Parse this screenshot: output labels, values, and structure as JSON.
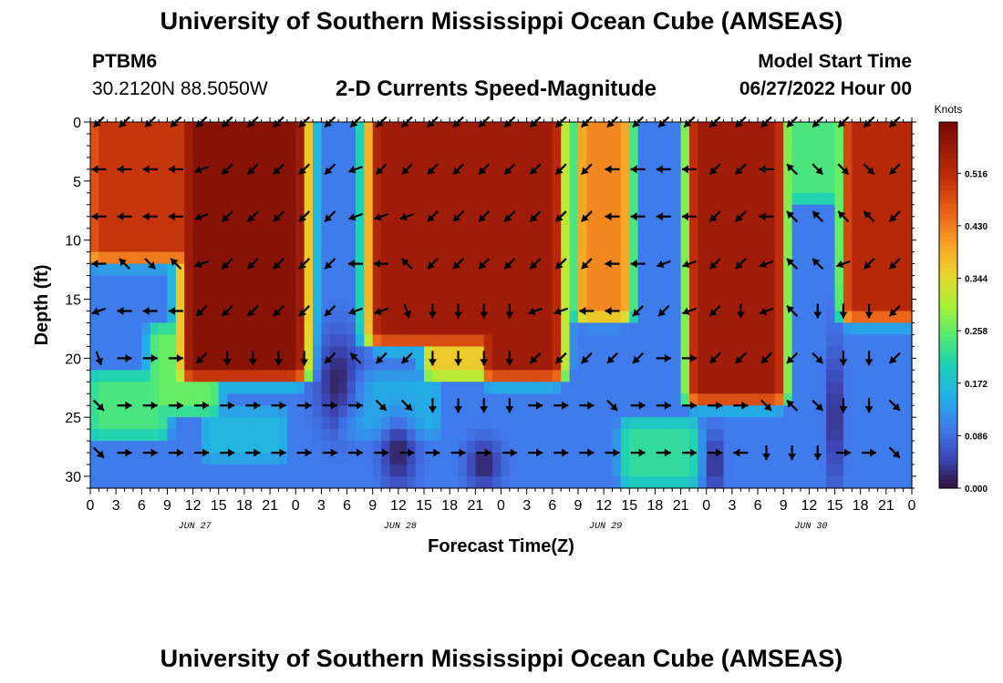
{
  "header": {
    "title": "University of Southern Mississippi Ocean Cube (AMSEAS)",
    "station_id": "PTBM6",
    "station_coords": "30.2120N  88.5050W",
    "subtitle": "2-D Currents Speed-Magnitude",
    "model_start_label": "Model Start Time",
    "model_start_value": "06/27/2022 Hour 00"
  },
  "footer": {
    "title": "University of Southern Mississippi Ocean Cube (AMSEAS)"
  },
  "chart_data": {
    "type": "heatmap",
    "title": "2-D Currents Speed-Magnitude",
    "xlabel": "Forecast Time(Z)",
    "ylabel": "Depth (ft)",
    "xlim": [
      0,
      96
    ],
    "ylim": [
      31,
      0
    ],
    "x_ticks": [
      0,
      3,
      6,
      9,
      12,
      15,
      18,
      21,
      24,
      27,
      30,
      33,
      36,
      39,
      42,
      45,
      48,
      51,
      54,
      57,
      60,
      63,
      66,
      69,
      72,
      75,
      78,
      81,
      84,
      87,
      90,
      93,
      96
    ],
    "x_tick_labels": [
      "0",
      "3",
      "6",
      "9",
      "12",
      "15",
      "18",
      "21",
      "0",
      "3",
      "6",
      "9",
      "12",
      "15",
      "18",
      "21",
      "0",
      "3",
      "6",
      "9",
      "12",
      "15",
      "18",
      "21",
      "0",
      "3",
      "6",
      "9",
      "12",
      "15",
      "18",
      "21",
      "0"
    ],
    "date_labels": [
      {
        "x": 12,
        "label": "JUN 27"
      },
      {
        "x": 36,
        "label": "JUN 28"
      },
      {
        "x": 60,
        "label": "JUN 29"
      },
      {
        "x": 84,
        "label": "JUN 30"
      }
    ],
    "y_ticks": [
      0,
      5,
      10,
      15,
      20,
      25,
      30
    ],
    "colorbar": {
      "label": "Knots",
      "min": 0.0,
      "max": 0.6,
      "ticks": [
        0.0,
        0.086,
        0.172,
        0.258,
        0.344,
        0.43,
        0.516
      ],
      "tick_labels": [
        "0.000",
        "0.086",
        "0.172",
        "0.258",
        "0.344",
        "0.430",
        "0.516"
      ]
    },
    "arrow_depths": [
      0,
      4,
      8,
      12,
      16,
      20,
      24,
      28
    ],
    "arrow_hours": [
      1,
      4,
      7,
      10,
      13,
      16,
      19,
      22,
      25,
      28,
      31,
      34,
      37,
      40,
      43,
      46,
      49,
      52,
      55,
      58,
      61,
      64,
      67,
      70,
      73,
      76,
      79,
      82,
      85,
      88,
      91,
      94
    ],
    "arrow_angles_deg": [
      [
        225,
        225,
        225,
        225,
        225,
        225,
        225,
        225,
        225,
        225,
        225,
        225,
        225,
        225,
        225,
        225,
        225,
        225,
        225,
        225,
        225,
        225,
        225,
        225,
        225,
        225,
        225,
        225,
        225,
        225,
        225,
        225
      ],
      [
        180,
        180,
        180,
        180,
        200,
        225,
        225,
        225,
        225,
        225,
        200,
        225,
        225,
        225,
        225,
        225,
        225,
        225,
        225,
        225,
        180,
        180,
        180,
        180,
        225,
        225,
        180,
        135,
        315,
        315,
        315,
        225
      ],
      [
        180,
        180,
        180,
        180,
        200,
        225,
        225,
        225,
        225,
        225,
        200,
        200,
        200,
        225,
        225,
        225,
        225,
        225,
        225,
        225,
        180,
        180,
        180,
        180,
        225,
        225,
        180,
        135,
        135,
        135,
        135,
        225
      ],
      [
        180,
        135,
        315,
        135,
        200,
        225,
        225,
        225,
        225,
        225,
        180,
        180,
        135,
        225,
        225,
        225,
        225,
        225,
        225,
        225,
        180,
        180,
        200,
        200,
        225,
        225,
        200,
        135,
        135,
        200,
        225,
        225
      ],
      [
        200,
        180,
        180,
        180,
        225,
        225,
        225,
        225,
        225,
        225,
        200,
        200,
        290,
        270,
        270,
        270,
        270,
        200,
        200,
        180,
        180,
        225,
        225,
        200,
        225,
        270,
        200,
        135,
        270,
        270,
        270,
        225
      ],
      [
        290,
        0,
        0,
        0,
        225,
        270,
        270,
        270,
        270,
        225,
        135,
        225,
        225,
        270,
        270,
        270,
        270,
        225,
        225,
        225,
        225,
        225,
        0,
        0,
        225,
        225,
        225,
        225,
        315,
        270,
        270,
        225
      ],
      [
        315,
        0,
        0,
        0,
        0,
        0,
        0,
        0,
        0,
        0,
        0,
        315,
        315,
        270,
        270,
        270,
        270,
        0,
        0,
        0,
        315,
        0,
        0,
        0,
        0,
        0,
        315,
        135,
        315,
        270,
        270,
        315
      ],
      [
        315,
        0,
        0,
        0,
        0,
        0,
        0,
        0,
        0,
        0,
        0,
        0,
        0,
        0,
        0,
        0,
        0,
        0,
        0,
        0,
        0,
        0,
        0,
        0,
        0,
        180,
        270,
        270,
        270,
        0,
        0,
        315
      ]
    ]
  }
}
